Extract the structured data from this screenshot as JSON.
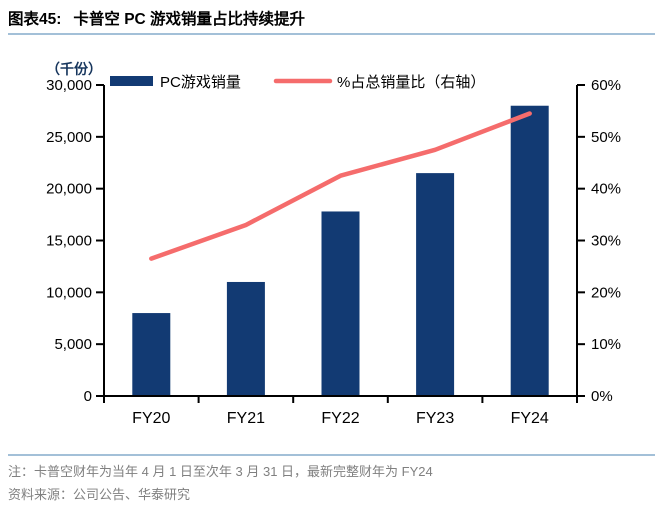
{
  "header": {
    "figure_label": "图表45:",
    "title": "卡普空 PC 游戏销量占比持续提升"
  },
  "chart_data": {
    "type": "bar",
    "subtype": "bar + line, dual y-axis",
    "unit_label": "（千份）",
    "categories": [
      "FY20",
      "FY21",
      "FY22",
      "FY23",
      "FY24"
    ],
    "series": [
      {
        "name": "PC游戏销量",
        "type": "bar",
        "axis": "left",
        "values": [
          8000,
          11000,
          17800,
          21500,
          28000
        ],
        "color": "#123A73"
      },
      {
        "name": "%占总销量比（右轴）",
        "type": "line",
        "axis": "right",
        "values": [
          26.5,
          33,
          42.5,
          47.5,
          54.5
        ],
        "color": "#F56C6C"
      }
    ],
    "left_axis": {
      "min": 0,
      "max": 30000,
      "step": 5000,
      "tick_labels": [
        "0",
        "5,000",
        "10,000",
        "15,000",
        "20,000",
        "25,000",
        "30,000"
      ]
    },
    "right_axis": {
      "min": 0,
      "max": 60,
      "step": 10,
      "tick_labels": [
        "0%",
        "10%",
        "20%",
        "30%",
        "40%",
        "50%",
        "60%"
      ]
    },
    "legend_position": "top",
    "grid": false
  },
  "footer": {
    "note": "注：卡普空财年为当年 4 月 1 日至次年 3 月 31 日，最新完整财年为 FY24",
    "source": "资料来源：公司公告、华泰研究"
  },
  "colors": {
    "bar": "#123A73",
    "line": "#F56C6C",
    "axis": "#000000",
    "divider": "#A3C0D8",
    "note_text": "#808080",
    "unit_label_text": "#17365D"
  }
}
